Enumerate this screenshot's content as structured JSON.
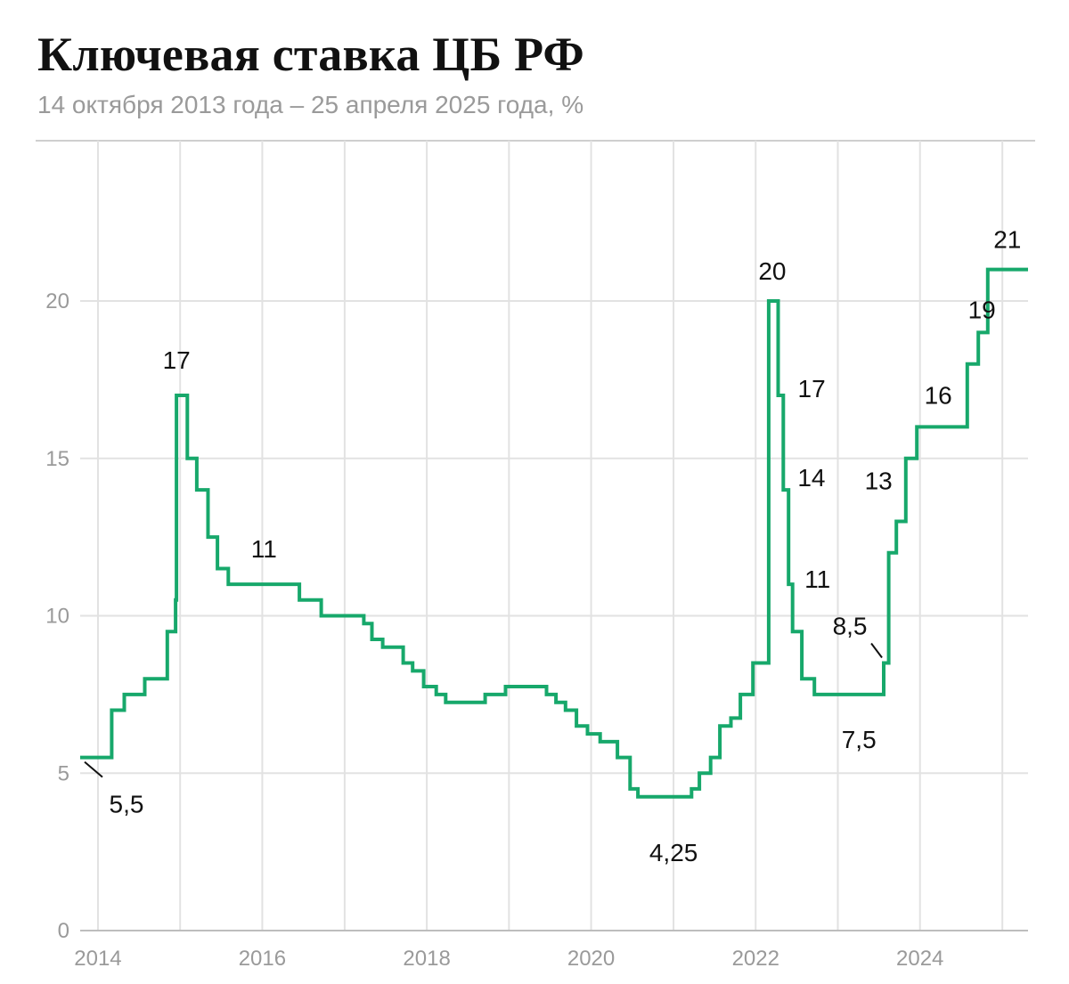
{
  "chart_data": {
    "type": "line",
    "title": "Ключевая ставка ЦБ РФ",
    "subtitle": "14 октября 2013 года – 25 апреля 2025 года, %",
    "xlabel": "",
    "ylabel": "",
    "step": "after",
    "xlim": [
      "2013-10-14",
      "2025-04-25"
    ],
    "ylim": [
      0,
      22
    ],
    "x_ticks": [
      "2014",
      "2016",
      "2018",
      "2020",
      "2022",
      "2024"
    ],
    "y_ticks": [
      0,
      5,
      10,
      15,
      20
    ],
    "grid": true,
    "line_color": "#17a86b",
    "series": [
      {
        "x": [
          "2013-10-14",
          "2014-03-03",
          "2014-04-28",
          "2014-07-28",
          "2014-11-05",
          "2014-12-12",
          "2014-12-16",
          "2015-02-02",
          "2015-03-16",
          "2015-05-05",
          "2015-06-16",
          "2015-08-03",
          "2016-06-14",
          "2016-09-19",
          "2017-03-27",
          "2017-05-02",
          "2017-06-19",
          "2017-09-18",
          "2017-10-30",
          "2017-12-18",
          "2018-02-12",
          "2018-03-26",
          "2018-09-17",
          "2018-12-17",
          "2019-06-17",
          "2019-07-29",
          "2019-09-09",
          "2019-10-28",
          "2019-12-16",
          "2020-02-10",
          "2020-04-27",
          "2020-06-22",
          "2020-07-27",
          "2021-03-22",
          "2021-04-26",
          "2021-06-15",
          "2021-07-26",
          "2021-09-13",
          "2021-10-25",
          "2021-12-20",
          "2022-02-28",
          "2022-04-11",
          "2022-05-04",
          "2022-05-27",
          "2022-06-14",
          "2022-07-25",
          "2022-09-19",
          "2023-07-24",
          "2023-08-15",
          "2023-09-18",
          "2023-10-30",
          "2023-12-18",
          "2024-07-29",
          "2024-09-16",
          "2024-10-28",
          "2025-04-25"
        ],
        "values": [
          5.5,
          7,
          7.5,
          8,
          9.5,
          10.5,
          17,
          15,
          14,
          12.5,
          11.5,
          11,
          10.5,
          10,
          9.75,
          9.25,
          9,
          8.5,
          8.25,
          7.75,
          7.5,
          7.25,
          7.5,
          7.75,
          7.5,
          7.25,
          7,
          6.5,
          6.25,
          6,
          5.5,
          4.5,
          4.25,
          4.5,
          5,
          5.5,
          6.5,
          6.75,
          7.5,
          8.5,
          20,
          17,
          14,
          11,
          9.5,
          8,
          7.5,
          8.5,
          12,
          13,
          15,
          16,
          18,
          19,
          21,
          21
        ]
      }
    ],
    "annotations": [
      {
        "text": "5,5",
        "date": "2013-10-14",
        "value": 5.5
      },
      {
        "text": "17",
        "date": "2014-12-16",
        "value": 17
      },
      {
        "text": "11",
        "date": "2015-08-03",
        "value": 11
      },
      {
        "text": "4,25",
        "date": "2020-07-27",
        "value": 4.25
      },
      {
        "text": "20",
        "date": "2022-02-28",
        "value": 20
      },
      {
        "text": "17",
        "date": "2022-04-11",
        "value": 17
      },
      {
        "text": "14",
        "date": "2022-05-04",
        "value": 14
      },
      {
        "text": "11",
        "date": "2022-05-27",
        "value": 11
      },
      {
        "text": "7,5",
        "date": "2022-09-19",
        "value": 7.5
      },
      {
        "text": "8,5",
        "date": "2023-07-24",
        "value": 8.5
      },
      {
        "text": "13",
        "date": "2023-09-18",
        "value": 13
      },
      {
        "text": "16",
        "date": "2023-12-18",
        "value": 16
      },
      {
        "text": "19",
        "date": "2024-09-16",
        "value": 19
      },
      {
        "text": "21",
        "date": "2024-10-28",
        "value": 21
      }
    ]
  }
}
